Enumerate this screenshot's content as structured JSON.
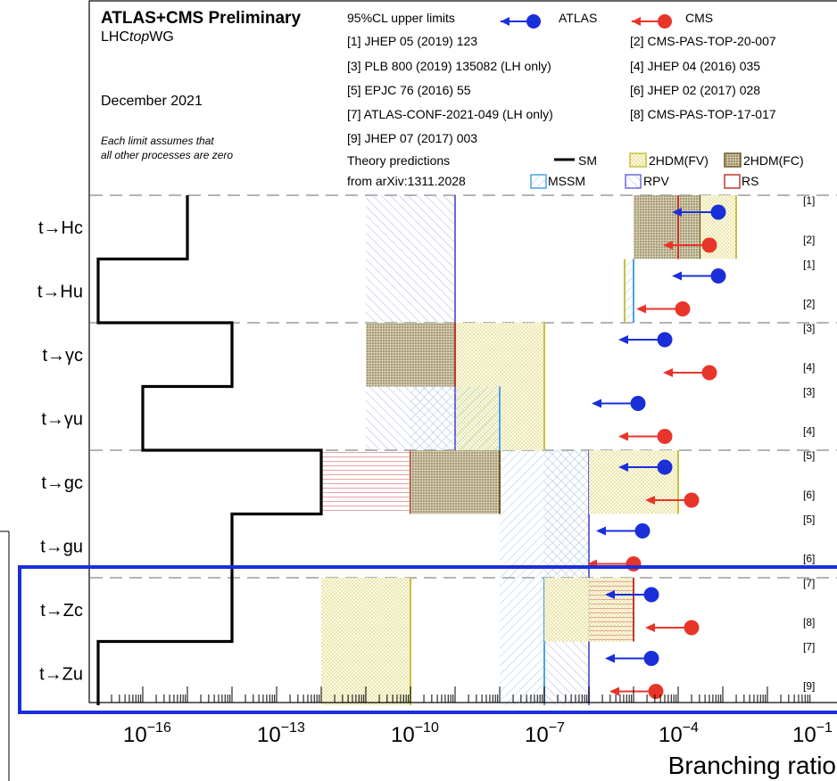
{
  "header": {
    "title": "ATLAS+CMS Preliminary",
    "group_prefix": "LHC",
    "group_italic": "top",
    "group_suffix": "WG",
    "date": "December 2021",
    "note_line1": "Each limit assumes that",
    "note_line2": "all other processes are zero",
    "cl_label": "95%CL upper limits",
    "atlas_label": "ATLAS",
    "cms_label": "CMS",
    "theory_line1": "Theory predictions",
    "theory_line2": "from arXiv:1311.2028"
  },
  "references": [
    "[1] JHEP 05 (2019) 123",
    "[2] CMS-PAS-TOP-20-007",
    "[3] PLB 800 (2019) 135082 (LH only)",
    "[4] JHEP 04 (2016) 035",
    "[5] EPJC 76 (2016) 55",
    "[6] JHEP 02 (2017) 028",
    "[7] ATLAS-CONF-2021-049 (LH only)",
    "[8] CMS-PAS-TOP-17-017",
    "[9] JHEP 07 (2017) 003"
  ],
  "theory_legend": [
    {
      "key": "SM",
      "label": "SM",
      "color": "#000000"
    },
    {
      "key": "FV",
      "label": "2HDM(FV)",
      "color": "#c8c040"
    },
    {
      "key": "FC",
      "label": "2HDM(FC)",
      "color": "#6b5a20"
    },
    {
      "key": "MSSM",
      "label": "MSSM",
      "color": "#4aa3df"
    },
    {
      "key": "RPV",
      "label": "RPV",
      "color": "#6a6ad8"
    },
    {
      "key": "RS",
      "label": "RS",
      "color": "#c0392b"
    }
  ],
  "colors": {
    "atlas": "#1a2fd8",
    "cms": "#e8352a",
    "sm": "#000000",
    "highlight": "#1a2fd8"
  },
  "chart_data": {
    "type": "bar",
    "xlabel": "Branching ratio",
    "xscale": "log",
    "xlim_exp": [
      -18,
      -2
    ],
    "ticks": [
      {
        "exp": -16,
        "label": "10",
        "sup": "−16"
      },
      {
        "exp": -13,
        "label": "10",
        "sup": "−13"
      },
      {
        "exp": -10,
        "label": "10",
        "sup": "−10"
      },
      {
        "exp": -7,
        "label": "10",
        "sup": "−7"
      },
      {
        "exp": -4,
        "label": "10",
        "sup": "−4"
      },
      {
        "exp": -1,
        "label": "10",
        "sup": "−1"
      }
    ],
    "categories": [
      "t→Hc",
      "t→Hu",
      "t→γc",
      "t→γu",
      "t→gc",
      "t→gu",
      "t→Zc",
      "t→Zu"
    ],
    "groups": [
      {
        "name": "H",
        "rows": [
          "t→Hc",
          "t→Hu"
        ]
      },
      {
        "name": "gamma",
        "rows": [
          "t→γc",
          "t→γu"
        ]
      },
      {
        "name": "g",
        "rows": [
          "t→gc",
          "t→gu"
        ]
      },
      {
        "name": "Z",
        "rows": [
          "t→Zc",
          "t→Zu"
        ]
      }
    ],
    "sm_log": [
      -15,
      -17,
      -14,
      -16,
      -12,
      -14,
      -14,
      -17
    ],
    "theory": [
      {
        "model": "RPV",
        "group": 0,
        "rows": [
          0,
          1
        ],
        "lo": -11,
        "hi": -9
      },
      {
        "model": "FC",
        "group": 0,
        "rows": [
          0
        ],
        "lo": -5,
        "hi": -3.5
      },
      {
        "model": "FV",
        "group": 0,
        "rows": [
          0
        ],
        "lo": -3.5,
        "hi": -2.7
      },
      {
        "model": "RS",
        "group": 0,
        "rows": [
          0
        ],
        "lo": -4,
        "hi": -4
      },
      {
        "model": "FV",
        "group": 0,
        "rows": [
          1
        ],
        "lo": -5.2,
        "hi": -5.2
      },
      {
        "model": "MSSM",
        "group": 0,
        "rows": [
          1
        ],
        "lo": -5.2,
        "hi": -5
      },
      {
        "model": "FC",
        "group": 1,
        "rows": [
          0
        ],
        "lo": -11,
        "hi": -9
      },
      {
        "model": "FV",
        "group": 1,
        "rows": [
          0,
          1
        ],
        "lo": -9,
        "hi": -7
      },
      {
        "model": "RPV",
        "group": 1,
        "rows": [
          1
        ],
        "lo": -11,
        "hi": -9
      },
      {
        "model": "MSSM",
        "group": 1,
        "rows": [
          1
        ],
        "lo": -10,
        "hi": -8
      },
      {
        "model": "RS",
        "group": 1,
        "rows": [
          0
        ],
        "lo": -9,
        "hi": -9
      },
      {
        "model": "RS",
        "group": 2,
        "rows": [
          0
        ],
        "lo": -12,
        "hi": -10
      },
      {
        "model": "FC",
        "group": 2,
        "rows": [
          0
        ],
        "lo": -10,
        "hi": -8
      },
      {
        "model": "MSSM",
        "group": 2,
        "rows": [
          0,
          1
        ],
        "lo": -8,
        "hi": -6
      },
      {
        "model": "RPV",
        "group": 2,
        "rows": [
          0,
          1
        ],
        "lo": -7,
        "hi": -6
      },
      {
        "model": "FV",
        "group": 2,
        "rows": [
          0
        ],
        "lo": -6,
        "hi": -4
      },
      {
        "model": "FV",
        "group": 3,
        "rows": [
          0,
          1
        ],
        "lo": -12,
        "hi": -10
      },
      {
        "model": "MSSM",
        "group": 3,
        "rows": [
          0,
          1
        ],
        "lo": -8,
        "hi": -7
      },
      {
        "model": "RPV",
        "group": 3,
        "rows": [
          0,
          1
        ],
        "lo": -7,
        "hi": -6
      },
      {
        "model": "FV",
        "group": 3,
        "rows": [
          0
        ],
        "lo": -7,
        "hi": -5
      },
      {
        "model": "RS",
        "group": 3,
        "rows": [
          0
        ],
        "lo": -6,
        "hi": -5
      }
    ],
    "limits": [
      {
        "row": 0,
        "exp": "ATLAS",
        "ref": "[1]",
        "log": -3.1
      },
      {
        "row": 0,
        "exp": "CMS",
        "ref": "[2]",
        "log": -3.3
      },
      {
        "row": 1,
        "exp": "ATLAS",
        "ref": "[1]",
        "log": -3.1
      },
      {
        "row": 1,
        "exp": "CMS",
        "ref": "[2]",
        "log": -3.9
      },
      {
        "row": 2,
        "exp": "ATLAS",
        "ref": "[3]",
        "log": -4.3
      },
      {
        "row": 2,
        "exp": "CMS",
        "ref": "[4]",
        "log": -3.3
      },
      {
        "row": 3,
        "exp": "ATLAS",
        "ref": "[3]",
        "log": -4.9
      },
      {
        "row": 3,
        "exp": "CMS",
        "ref": "[4]",
        "log": -4.3
      },
      {
        "row": 4,
        "exp": "ATLAS",
        "ref": "[5]",
        "log": -4.3
      },
      {
        "row": 4,
        "exp": "CMS",
        "ref": "[6]",
        "log": -3.7
      },
      {
        "row": 5,
        "exp": "ATLAS",
        "ref": "[5]",
        "log": -4.8
      },
      {
        "row": 5,
        "exp": "CMS",
        "ref": "[6]",
        "log": -5.0
      },
      {
        "row": 6,
        "exp": "ATLAS",
        "ref": "[7]",
        "log": -4.6
      },
      {
        "row": 6,
        "exp": "CMS",
        "ref": "[8]",
        "log": -3.7
      },
      {
        "row": 7,
        "exp": "ATLAS",
        "ref": "[7]",
        "log": -4.6
      },
      {
        "row": 7,
        "exp": "CMS",
        "ref": "[9]",
        "log": -4.5
      }
    ]
  }
}
